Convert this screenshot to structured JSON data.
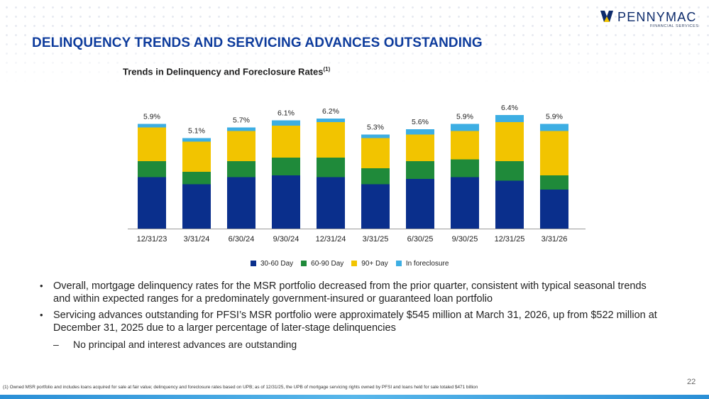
{
  "header": {
    "logo_name": "PENNYMAC",
    "logo_sub": "FINANCIAL SERVICES",
    "title": "DELINQUENCY TRENDS AND SERVICING ADVANCES OUTSTANDING",
    "chart_title": "Trends in Delinquency and Foreclosure Rates",
    "chart_title_footnote": "(1)"
  },
  "colors": {
    "d30_60": "#0a2f8c",
    "d60_90": "#1f8a3a",
    "d90_plus": "#f2c400",
    "foreclosure": "#3daee3",
    "title": "#0d3b9c"
  },
  "chart_data": {
    "type": "bar",
    "stacked": true,
    "categories": [
      "12/31/23",
      "3/31/24",
      "6/30/24",
      "9/30/24",
      "12/31/24",
      "3/31/25",
      "6/30/25",
      "9/30/25",
      "12/31/25",
      "3/31/26"
    ],
    "totals_labels": [
      "5.9%",
      "5.1%",
      "5.7%",
      "6.1%",
      "6.2%",
      "5.3%",
      "5.6%",
      "5.9%",
      "6.4%",
      "5.9%"
    ],
    "series": [
      {
        "name": "30-60 Day",
        "color": "#0a2f8c",
        "values": [
          2.9,
          2.5,
          2.9,
          3.0,
          2.9,
          2.5,
          2.8,
          2.9,
          2.7,
          2.2
        ]
      },
      {
        "name": "60-90 Day",
        "color": "#1f8a3a",
        "values": [
          0.9,
          0.7,
          0.9,
          1.0,
          1.1,
          0.9,
          1.0,
          1.0,
          1.1,
          0.8
        ]
      },
      {
        "name": "90+ Day",
        "color": "#f2c400",
        "values": [
          1.9,
          1.7,
          1.7,
          1.8,
          2.0,
          1.7,
          1.5,
          1.6,
          2.2,
          2.5
        ]
      },
      {
        "name": "In foreclosure",
        "color": "#3daee3",
        "values": [
          0.2,
          0.2,
          0.2,
          0.3,
          0.2,
          0.2,
          0.3,
          0.4,
          0.4,
          0.4
        ]
      }
    ],
    "ylim": [
      0,
      7
    ],
    "legend_position": "bottom-center",
    "grid": false
  },
  "bullets": [
    "Overall, mortgage delinquency rates for the MSR portfolio decreased from the prior quarter, consistent with typical seasonal trends and within expected ranges for a predominately government-insured or guaranteed loan portfolio",
    "Servicing advances outstanding for PFSI’s MSR portfolio were approximately $545 million at March 31, 2026, up from $522 million at December 31, 2025 due to a larger percentage of later-stage delinquencies"
  ],
  "bullet_symbol": "•",
  "sub_bullet_symbol": "–",
  "sub_bullet": "No principal and interest advances are outstanding",
  "footnote": "(1) Owned MSR portfolio and includes loans acquired for sale at fair value; delinquency and foreclosure rates based on UPB; as of 12/31/25, the UPB of mortgage servicing rights owned by PFSI and loans held for sale totaled $471 billion",
  "page_number": "22"
}
